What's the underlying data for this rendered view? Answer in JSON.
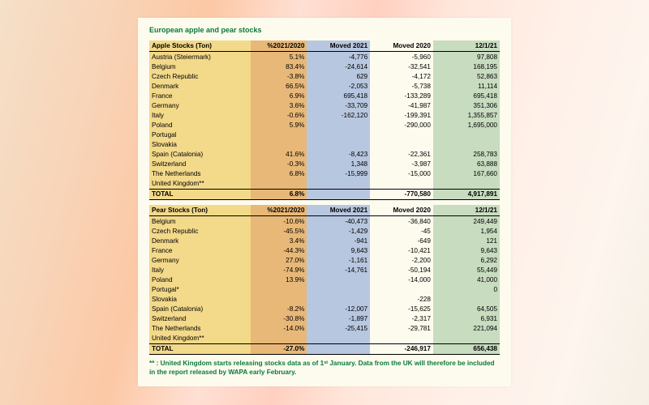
{
  "title": "European apple and pear stocks",
  "colors": {
    "page_bg": "#fdfbee",
    "title_color": "#0a7a3a",
    "col_name_bg": "#f3d98a",
    "col_pct_bg": "#e8b878",
    "col_m21_bg": "#b8c7e0",
    "col_m20_bg": "#fdfbee",
    "col_date_bg": "#c8dcc0"
  },
  "tables": [
    {
      "heading": "Apple Stocks (Ton)",
      "columns": [
        "%2021/2020",
        "Moved 2021",
        "Moved 2020",
        "12/1/21"
      ],
      "rows": [
        {
          "name": "Austria (Steiermark)",
          "pct": "5.1%",
          "m21": "-4,776",
          "m20": "-5,960",
          "d": "97,808"
        },
        {
          "name": "Belgium",
          "pct": "83.4%",
          "m21": "-24,614",
          "m20": "-32,541",
          "d": "168,195"
        },
        {
          "name": "Czech Republic",
          "pct": "-3.8%",
          "m21": "629",
          "m20": "-4,172",
          "d": "52,863"
        },
        {
          "name": "Denmark",
          "pct": "66.5%",
          "m21": "-2,053",
          "m20": "-5,738",
          "d": "11,114"
        },
        {
          "name": "France",
          "pct": "6.9%",
          "m21": "695,418",
          "m20": "-133,289",
          "d": "695,418"
        },
        {
          "name": "Germany",
          "pct": "3.6%",
          "m21": "-33,709",
          "m20": "-41,987",
          "d": "351,306"
        },
        {
          "name": "Italy",
          "pct": "-0.6%",
          "m21": "-162,120",
          "m20": "-199,391",
          "d": "1,355,857"
        },
        {
          "name": "Poland",
          "pct": "5.9%",
          "m21": "",
          "m20": "-290,000",
          "d": "1,695,000"
        },
        {
          "name": "Portugal",
          "pct": "",
          "m21": "",
          "m20": "",
          "d": ""
        },
        {
          "name": "Slovakia",
          "pct": "",
          "m21": "",
          "m20": "",
          "d": ""
        },
        {
          "name": "Spain (Catalonia)",
          "pct": "41.6%",
          "m21": "-8,423",
          "m20": "-22,361",
          "d": "258,783"
        },
        {
          "name": "Switzerland",
          "pct": "-0.3%",
          "m21": "1,348",
          "m20": "-3,987",
          "d": "63,888"
        },
        {
          "name": "The Netherlands",
          "pct": "6.8%",
          "m21": "-15,999",
          "m20": "-15,000",
          "d": "167,660"
        },
        {
          "name": "United Kingdom**",
          "pct": "",
          "m21": "",
          "m20": "",
          "d": ""
        }
      ],
      "total": {
        "name": "TOTAL",
        "pct": "6.8%",
        "m21": "",
        "m20": "-770,580",
        "d": "4,917,891"
      }
    },
    {
      "heading": "Pear Stocks (Ton)",
      "columns": [
        "%2021/2020",
        "Moved 2021",
        "Moved 2020",
        "12/1/21"
      ],
      "rows": [
        {
          "name": "Belgium",
          "pct": "-10.6%",
          "m21": "-40,473",
          "m20": "-36,840",
          "d": "249,449"
        },
        {
          "name": "Czech Republic",
          "pct": "-45.5%",
          "m21": "-1,429",
          "m20": "-45",
          "d": "1,954"
        },
        {
          "name": "Denmark",
          "pct": "3.4%",
          "m21": "-941",
          "m20": "-649",
          "d": "121"
        },
        {
          "name": "France",
          "pct": "-44.3%",
          "m21": "9,643",
          "m20": "-10,421",
          "d": "9,643"
        },
        {
          "name": "Germany",
          "pct": "27.0%",
          "m21": "-1,161",
          "m20": "-2,200",
          "d": "6,292"
        },
        {
          "name": "Italy",
          "pct": "-74.9%",
          "m21": "-14,761",
          "m20": "-50,194",
          "d": "55,449"
        },
        {
          "name": "Poland",
          "pct": "13.9%",
          "m21": "",
          "m20": "-14,000",
          "d": "41,000"
        },
        {
          "name": "Portugal*",
          "pct": "",
          "m21": "",
          "m20": "",
          "d": "0"
        },
        {
          "name": "Slovakia",
          "pct": "",
          "m21": "",
          "m20": "-228",
          "d": ""
        },
        {
          "name": "Spain (Catalonia)",
          "pct": "-8.2%",
          "m21": "-12,007",
          "m20": "-15,625",
          "d": "64,505"
        },
        {
          "name": "Switzerland",
          "pct": "-30.8%",
          "m21": "-1,897",
          "m20": "-2,317",
          "d": "6,931"
        },
        {
          "name": "The Netherlands",
          "pct": "-14.0%",
          "m21": "-25,415",
          "m20": "-29,781",
          "d": "221,094"
        },
        {
          "name": "United Kingdom**",
          "pct": "",
          "m21": "",
          "m20": "",
          "d": ""
        }
      ],
      "total": {
        "name": "TOTAL",
        "pct": "-27.0%",
        "m21": "",
        "m20": "-246,917",
        "d": "656,438"
      }
    }
  ],
  "footnote": "** : United Kingdom starts releasing stocks data as of 1ˢᵗ January. Data from the UK will therefore be included in the report released by WAPA early February."
}
